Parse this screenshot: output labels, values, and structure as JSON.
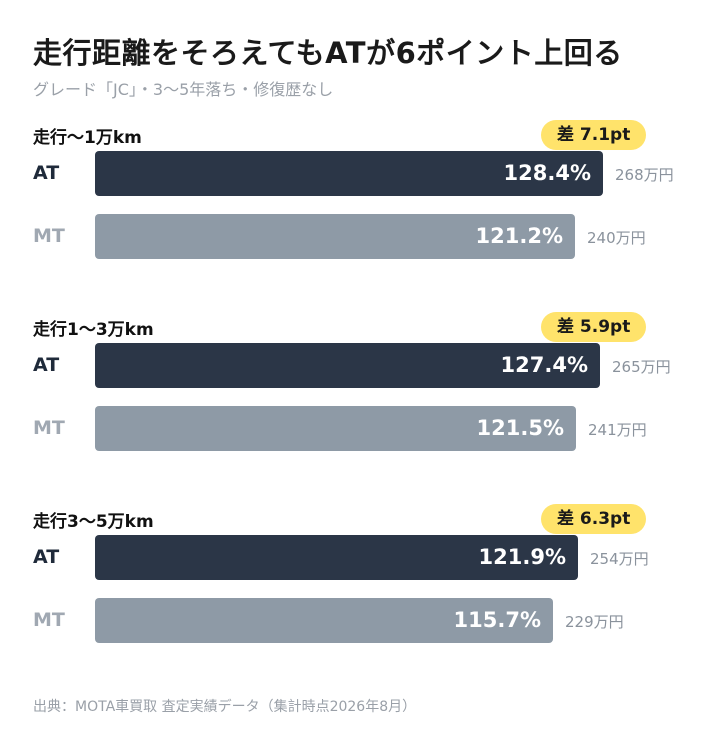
{
  "header": {
    "title": "走行距離をそろえてもATが6ポイント上回る",
    "subtitle": "グレード「JC」・3〜5年落ち・修復歴なし"
  },
  "footer": {
    "source": "出典：MOTA車買取 査定実績データ（集計時点2026年8月）"
  },
  "colors": {
    "at_bar": "#2b3647",
    "mt_bar": "#8e9aa6",
    "badge": "#ffe36b"
  },
  "chart_data": {
    "type": "bar",
    "orientation": "horizontal",
    "title": "走行距離をそろえてもATが6ポイント上回る",
    "subtitle": "グレード「JC」・3〜5年落ち・修復歴なし",
    "xlim": [
      0,
      140
    ],
    "grid": false,
    "groups": [
      {
        "label": "走行〜1万km",
        "diff_label": "差 7.1pt",
        "bars": [
          {
            "name": "AT",
            "value": 128.4,
            "value_label": "128.4%",
            "amount_label": "268万円"
          },
          {
            "name": "MT",
            "value": 121.2,
            "value_label": "121.2%",
            "amount_label": "240万円"
          }
        ]
      },
      {
        "label": "走行1〜3万km",
        "diff_label": "差 5.9pt",
        "bars": [
          {
            "name": "AT",
            "value": 127.4,
            "value_label": "127.4%",
            "amount_label": "265万円"
          },
          {
            "name": "MT",
            "value": 121.5,
            "value_label": "121.5%",
            "amount_label": "241万円"
          }
        ]
      },
      {
        "label": "走行3〜5万km",
        "diff_label": "差 6.3pt",
        "bars": [
          {
            "name": "AT",
            "value": 121.9,
            "value_label": "121.9%",
            "amount_label": "254万円"
          },
          {
            "name": "MT",
            "value": 115.7,
            "value_label": "115.7%",
            "amount_label": "229万円"
          }
        ]
      }
    ]
  }
}
